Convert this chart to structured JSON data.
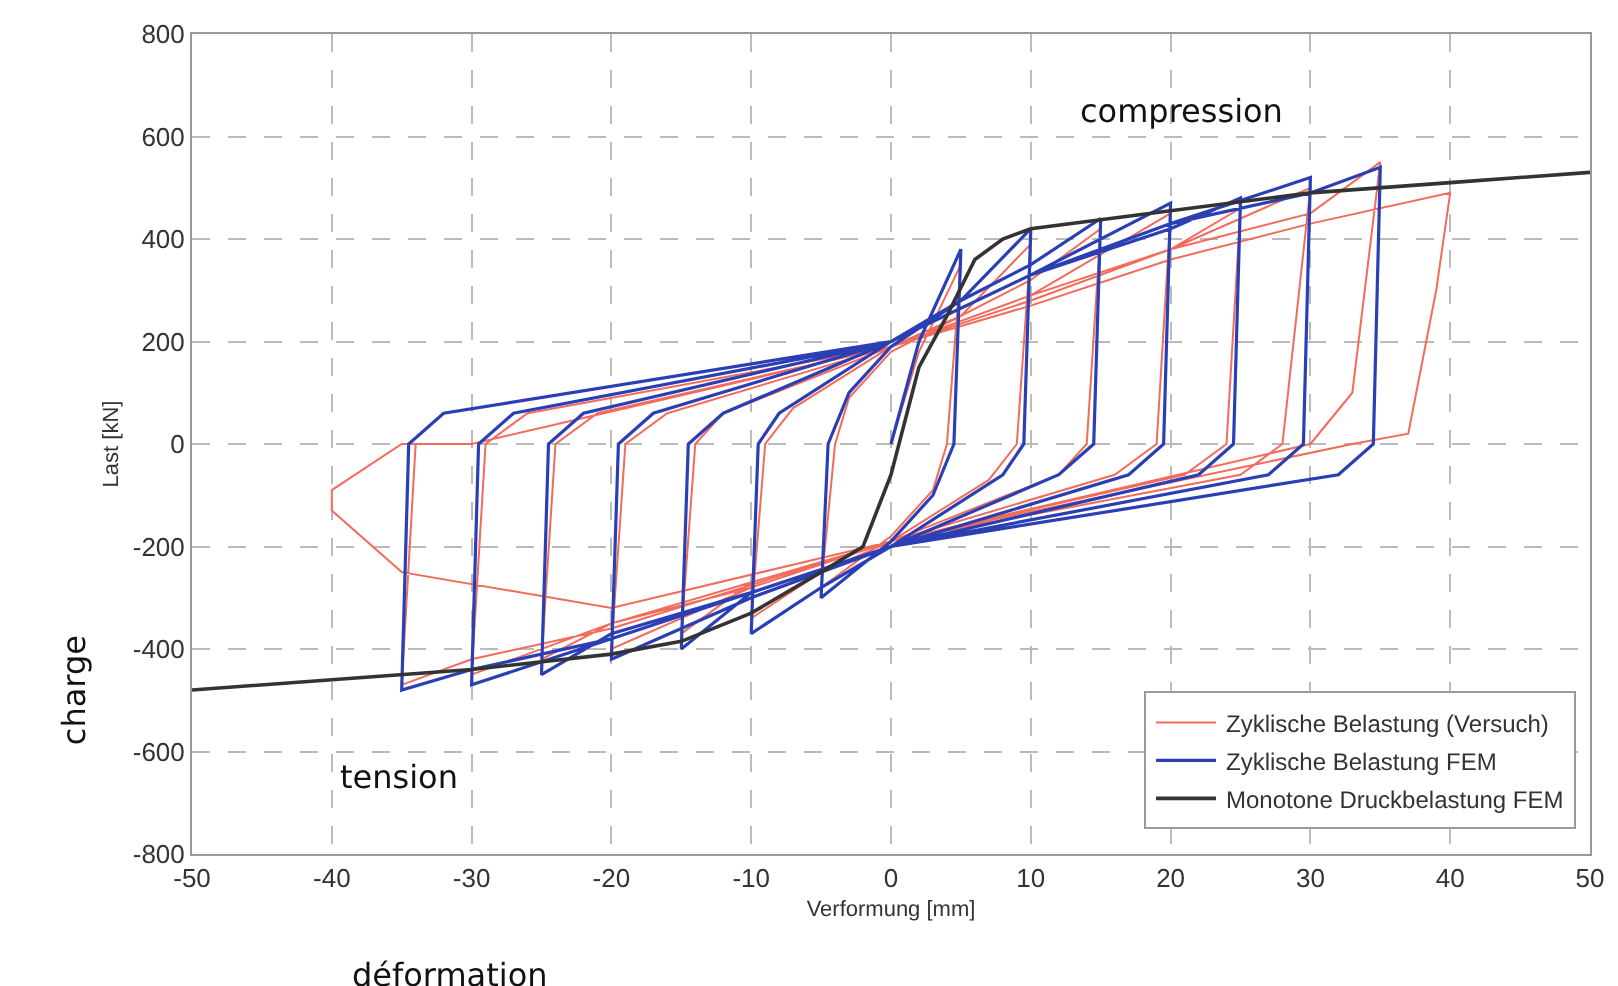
{
  "chart_data": {
    "type": "line",
    "xlabel": "Verformung [mm]",
    "ylabel": "Last [kN]",
    "xlim": [
      -50,
      50
    ],
    "xticks": [
      -50,
      -40,
      -30,
      -20,
      -10,
      0,
      10,
      20,
      30,
      40,
      50
    ],
    "ylim": [
      -800,
      800
    ],
    "yticks": [
      -800,
      -600,
      -400,
      -200,
      0,
      200,
      400,
      600,
      800
    ],
    "grid": true,
    "legend": "bottom right",
    "marker": "none",
    "annotations": [
      "charge",
      "déformation",
      "compression",
      "tension"
    ],
    "series": [
      {
        "name": "Zyklische Belastung (Versuch)",
        "color": "#f26b5b",
        "line_style": "solid",
        "x": [
          0,
          2,
          5,
          4,
          3,
          0,
          -5,
          -4,
          -3,
          0,
          5,
          10,
          9,
          7,
          0,
          -5,
          -10,
          -9,
          -7,
          0,
          5,
          10,
          15,
          14,
          12,
          0,
          -10,
          -15,
          -14,
          -12,
          0,
          10,
          20,
          19,
          16,
          0,
          -10,
          -20,
          -19,
          -16,
          0,
          10,
          20,
          25,
          24,
          21,
          0,
          -10,
          -20,
          -25,
          -24,
          -21,
          0,
          10,
          20,
          30,
          28,
          25,
          0,
          -20,
          -30,
          -29,
          -26,
          0,
          10,
          20,
          30,
          35,
          33,
          30,
          0,
          -20,
          -30,
          -35,
          -34,
          -30,
          0,
          10,
          20,
          30,
          40,
          39,
          37,
          33,
          0,
          -20,
          -35,
          -40,
          -40,
          -35,
          -30
        ],
        "values": [
          0,
          180,
          350,
          0,
          -90,
          -180,
          -280,
          0,
          90,
          180,
          250,
          390,
          0,
          -70,
          -190,
          -250,
          -340,
          0,
          70,
          190,
          250,
          320,
          420,
          0,
          -60,
          -190,
          -270,
          -370,
          0,
          60,
          190,
          290,
          450,
          0,
          -60,
          -190,
          -280,
          -400,
          0,
          60,
          190,
          280,
          380,
          460,
          0,
          -60,
          -190,
          -280,
          -350,
          -420,
          0,
          60,
          190,
          290,
          380,
          500,
          0,
          -60,
          -190,
          -350,
          -450,
          0,
          60,
          190,
          280,
          380,
          450,
          550,
          100,
          0,
          -190,
          -360,
          -420,
          -470,
          0,
          0,
          190,
          270,
          360,
          430,
          490,
          300,
          20,
          0,
          -190,
          -320,
          -250,
          -130,
          -90,
          0,
          0
        ]
      },
      {
        "name": "Zyklische Belastung FEM",
        "color": "#2b3fb5",
        "line_style": "solid",
        "x": [
          0,
          2,
          5,
          4.5,
          3,
          0,
          -5,
          -4.5,
          -3,
          0,
          5,
          10,
          9.5,
          8,
          0,
          -5,
          -10,
          -9.5,
          -8,
          0,
          5,
          10,
          15,
          14.5,
          12,
          0,
          -10,
          -15,
          -14.5,
          -12,
          0,
          10,
          20,
          19.5,
          17,
          0,
          -10,
          -20,
          -19.5,
          -17,
          0,
          10,
          20,
          25,
          24.5,
          22,
          0,
          -10,
          -20,
          -25,
          -24.5,
          -22,
          0,
          10,
          20,
          30,
          29.5,
          27,
          0,
          -20,
          -30,
          -29.5,
          -27,
          0,
          10,
          20,
          30,
          35,
          34.5,
          32,
          0,
          -20,
          -30,
          -35,
          -34.5,
          -32,
          0
        ],
        "values": [
          0,
          200,
          380,
          0,
          -100,
          -190,
          -300,
          0,
          100,
          190,
          280,
          420,
          0,
          -60,
          -200,
          -280,
          -370,
          0,
          60,
          200,
          280,
          350,
          440,
          0,
          -60,
          -200,
          -290,
          -400,
          0,
          60,
          200,
          330,
          470,
          0,
          -60,
          -200,
          -300,
          -420,
          0,
          60,
          200,
          330,
          420,
          480,
          0,
          -60,
          -200,
          -290,
          -370,
          -450,
          0,
          60,
          200,
          330,
          430,
          520,
          0,
          -60,
          -200,
          -380,
          -470,
          0,
          60,
          200,
          330,
          430,
          490,
          540,
          0,
          -60,
          -200,
          -380,
          -440,
          -480,
          0,
          60,
          200
        ]
      },
      {
        "name": "Monotone Druckbelastung FEM",
        "color": "#333333",
        "line_style": "solid",
        "x": [
          -50,
          -40,
          -30,
          -20,
          -15,
          -10,
          -5,
          -2,
          0,
          2,
          4,
          6,
          8,
          10,
          20,
          30,
          40,
          50
        ],
        "values": [
          -480,
          -460,
          -440,
          -410,
          -385,
          -330,
          -250,
          -200,
          -60,
          150,
          250,
          360,
          400,
          420,
          455,
          490,
          510,
          530
        ]
      }
    ]
  }
}
